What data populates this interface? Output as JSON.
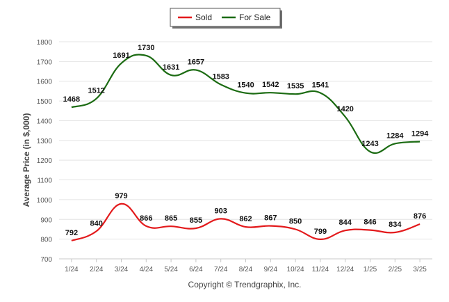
{
  "chart_data": {
    "type": "line",
    "ylabel": "Average Price (in $,000)",
    "credit": "Copyright © Trendgraphix, Inc.",
    "categories": [
      "1/24",
      "2/24",
      "3/24",
      "4/24",
      "5/24",
      "6/24",
      "7/24",
      "8/24",
      "9/24",
      "10/24",
      "11/24",
      "12/24",
      "1/25",
      "2/25",
      "3/25"
    ],
    "ylim": [
      700,
      1800
    ],
    "yticks": [
      700,
      800,
      900,
      1000,
      1100,
      1200,
      1300,
      1400,
      1500,
      1600,
      1700,
      1800
    ],
    "grid": true,
    "legend_position": "top-center",
    "series": [
      {
        "name": "Sold",
        "color": "#e31a1c",
        "values": [
          792,
          840,
          979,
          866,
          865,
          855,
          903,
          862,
          867,
          850,
          799,
          844,
          846,
          834,
          876
        ]
      },
      {
        "name": "For Sale",
        "color": "#1b6b12",
        "values": [
          1468,
          1512,
          1691,
          1730,
          1631,
          1657,
          1583,
          1540,
          1542,
          1535,
          1541,
          1420,
          1243,
          1284,
          1294
        ]
      }
    ]
  }
}
